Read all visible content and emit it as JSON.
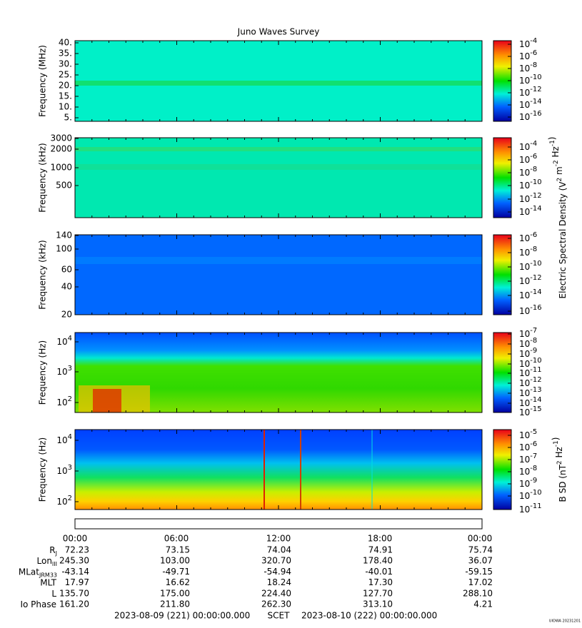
{
  "title": "Juno Waves Survey",
  "panels": [
    {
      "ylabel": "Frequency (MHz)",
      "yticks": [
        "40.",
        "35.",
        "30.",
        "25.",
        "20.",
        "15.",
        "10.",
        "5."
      ],
      "cbticks": [
        {
          "b": "10",
          "e": "-4"
        },
        {
          "b": "10",
          "e": "-6"
        },
        {
          "b": "10",
          "e": "-8"
        },
        {
          "b": "10",
          "e": "-10"
        },
        {
          "b": "10",
          "e": "-12"
        },
        {
          "b": "10",
          "e": "-14"
        },
        {
          "b": "10",
          "e": "-16"
        }
      ]
    },
    {
      "ylabel": "Frequency (kHz)",
      "yticks": [
        "3000",
        "2000",
        "1000",
        "500"
      ],
      "cbticks": [
        {
          "b": "10",
          "e": "-4"
        },
        {
          "b": "10",
          "e": "-6"
        },
        {
          "b": "10",
          "e": "-8"
        },
        {
          "b": "10",
          "e": "-10"
        },
        {
          "b": "10",
          "e": "-12"
        },
        {
          "b": "10",
          "e": "-14"
        }
      ]
    },
    {
      "ylabel": "Frequency (kHz)",
      "yticks": [
        "140",
        "100",
        "60",
        "40",
        "20"
      ],
      "cbticks": [
        {
          "b": "10",
          "e": "-6"
        },
        {
          "b": "10",
          "e": "-8"
        },
        {
          "b": "10",
          "e": "-10"
        },
        {
          "b": "10",
          "e": "-12"
        },
        {
          "b": "10",
          "e": "-14"
        },
        {
          "b": "10",
          "e": "-16"
        }
      ]
    },
    {
      "ylabel": "Frequency (Hz)",
      "yticks": [
        {
          "b": "10",
          "e": "4"
        },
        {
          "b": "10",
          "e": "3"
        },
        {
          "b": "10",
          "e": "2"
        }
      ],
      "cbticks": [
        {
          "b": "10",
          "e": "-7"
        },
        {
          "b": "10",
          "e": "-8"
        },
        {
          "b": "10",
          "e": "-9"
        },
        {
          "b": "10",
          "e": "-10"
        },
        {
          "b": "10",
          "e": "-11"
        },
        {
          "b": "10",
          "e": "-12"
        },
        {
          "b": "10",
          "e": "-13"
        },
        {
          "b": "10",
          "e": "-14"
        },
        {
          "b": "10",
          "e": "-15"
        }
      ]
    },
    {
      "ylabel": "Frequency (Hz)",
      "yticks": [
        {
          "b": "10",
          "e": "4"
        },
        {
          "b": "10",
          "e": "3"
        },
        {
          "b": "10",
          "e": "2"
        }
      ],
      "cbticks": [
        {
          "b": "10",
          "e": "-5"
        },
        {
          "b": "10",
          "e": "-6"
        },
        {
          "b": "10",
          "e": "-7"
        },
        {
          "b": "10",
          "e": "-8"
        },
        {
          "b": "10",
          "e": "-9"
        },
        {
          "b": "10",
          "e": "-10"
        },
        {
          "b": "10",
          "e": "-11"
        }
      ]
    }
  ],
  "colorbar_labels": [
    [
      {
        "t": "Electric Spectral Density (V"
      },
      {
        "sup": "2"
      },
      {
        "t": " m"
      },
      {
        "sup": "-2"
      },
      {
        "t": " Hz"
      },
      {
        "sup": "-1"
      },
      {
        "t": ")"
      }
    ],
    [
      {
        "t": "B SD (nT"
      },
      {
        "sup": "2"
      },
      {
        "t": " Hz"
      },
      {
        "sup": "-1"
      },
      {
        "t": ")"
      }
    ]
  ],
  "time_labels": [
    "00:00",
    "06:00",
    "12:00",
    "18:00",
    "00:00"
  ],
  "ephemeris": [
    {
      "label": "R",
      "sub": "J",
      "values": [
        "72.23",
        "73.15",
        "74.04",
        "74.91",
        "75.74"
      ]
    },
    {
      "label": "Lon",
      "sub": "III",
      "values": [
        "245.30",
        "103.00",
        "320.70",
        "178.40",
        "36.07"
      ]
    },
    {
      "label": "MLat",
      "sub": "JRM33",
      "values": [
        "-43.14",
        "-49.71",
        "-54.94",
        "-40.01",
        "-59.15"
      ]
    },
    {
      "label": "MLT",
      "values": [
        "17.97",
        "16.62",
        "18.24",
        "17.30",
        "17.02"
      ]
    },
    {
      "label": "L",
      "values": [
        "135.70",
        "175.00",
        "224.40",
        "127.70",
        "288.10"
      ]
    },
    {
      "label": "Io Phase",
      "values": [
        "161.20",
        "211.80",
        "262.30",
        "313.10",
        "4.21"
      ]
    }
  ],
  "scet": {
    "start": "2023-08-09 (221) 00:00:00.000",
    "label": "SCET",
    "end": "2023-08-10 (222) 00:00:00.000"
  },
  "stamp": "UIOWA 20231201"
}
